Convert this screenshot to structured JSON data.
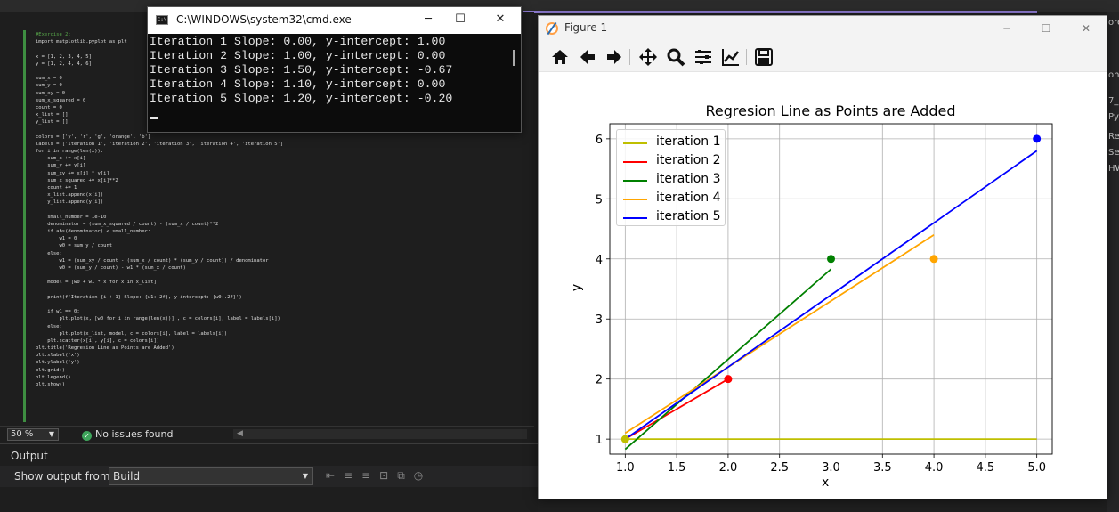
{
  "ide": {
    "code_lines": [
      "#Exercise 2:",
      "import matplotlib.pyplot as plt",
      "",
      "x = [1, 2, 3, 4, 5]",
      "y = [1, 2, 4, 4, 6]",
      "",
      "sum_x = 0",
      "sum_y = 0",
      "sum_xy = 0",
      "sum_x_squared = 0",
      "count = 0",
      "x_list = []",
      "y_list = []",
      "",
      "colors = ['y', 'r', 'g', 'orange', 'b']",
      "labels = ['iteration 1', 'iteration 2', 'iteration 3', 'iteration 4', 'iteration 5']",
      "for i in range(len(x)):",
      "    sum_x += x[i]",
      "    sum_y += y[i]",
      "    sum_xy += x[i] * y[i]",
      "    sum_x_squared += x[i]**2",
      "    count += 1",
      "    x_list.append(x[i])",
      "    y_list.append(y[i])",
      "",
      "    small_number = 1e-10",
      "    denominator = (sum_x_squared / count) - (sum_x / count)**2",
      "    if abs(denominator) < small_number:",
      "        w1 = 0",
      "        w0 = sum_y / count",
      "    else:",
      "        w1 = (sum_xy / count - (sum_x / count) * (sum_y / count)) / denominator",
      "        w0 = (sum_y / count) - w1 * (sum_x / count)",
      "",
      "    model = [w0 + w1 * x for x in x_list]",
      "",
      "    print(f'Iteration {i + 1} Slope: {w1:.2f}, y-intercept: {w0:.2f}')",
      "",
      "    if w1 == 0:",
      "        plt.plot(x, [w0 for i in range(len(x))] , c = colors[i], label = labels[i])",
      "    else:",
      "        plt.plot(x_list, model, c = colors[i], label = labels[i])",
      "    plt.scatter(x[i], y[i], c = colors[i])",
      "plt.title('Regresion Line as Points are Added')",
      "plt.xlabel('x')",
      "plt.ylabel('y')",
      "plt.grid()",
      "plt.legend()",
      "plt.show()"
    ],
    "zoom": "50 %",
    "issues": "No issues found",
    "output_title": "Output",
    "show_output_label": "Show output from:",
    "output_source": "Build",
    "right_fragments": [
      "ore",
      "on '",
      "7_",
      "Py",
      "Re",
      "Sea",
      "HW"
    ]
  },
  "cmd": {
    "title": "C:\\WINDOWS\\system32\\cmd.exe",
    "lines": [
      "Iteration 1 Slope: 0.00, y-intercept: 1.00",
      "Iteration 2 Slope: 1.00, y-intercept: 0.00",
      "Iteration 3 Slope: 1.50, y-intercept: -0.67",
      "Iteration 4 Slope: 1.10, y-intercept: 0.00",
      "Iteration 5 Slope: 1.20, y-intercept: -0.20"
    ]
  },
  "figure": {
    "window_title": "Figure 1",
    "toolbar": [
      "home-icon",
      "back-icon",
      "forward-icon",
      "pan-icon",
      "zoom-icon",
      "configure-subplots-icon",
      "edit-axis-icon",
      "save-icon"
    ]
  },
  "chart_data": {
    "type": "line",
    "title": "Regresion Line as Points are Added",
    "xlabel": "x",
    "ylabel": "y",
    "xlim": [
      0.85,
      5.15
    ],
    "ylim": [
      0.75,
      6.25
    ],
    "xticks": [
      "1.0",
      "1.5",
      "2.0",
      "2.5",
      "3.0",
      "3.5",
      "4.0",
      "4.5",
      "5.0"
    ],
    "yticks": [
      "1",
      "2",
      "3",
      "4",
      "5",
      "6"
    ],
    "grid": true,
    "legend_position": "top-left",
    "series": [
      {
        "name": "iteration 1",
        "color": "#bfbf00",
        "x": [
          1,
          2,
          3,
          4,
          5
        ],
        "y": [
          1,
          1,
          1,
          1,
          1
        ],
        "point": [
          1,
          1
        ]
      },
      {
        "name": "iteration 2",
        "color": "#ff0000",
        "x": [
          1,
          2
        ],
        "y": [
          1,
          2
        ],
        "point": [
          2,
          2
        ]
      },
      {
        "name": "iteration 3",
        "color": "#008000",
        "x": [
          1,
          2,
          3
        ],
        "y": [
          0.83,
          2.33,
          3.83
        ],
        "point": [
          3,
          4
        ]
      },
      {
        "name": "iteration 4",
        "color": "#ffa500",
        "x": [
          1,
          2,
          3,
          4
        ],
        "y": [
          1.1,
          2.2,
          3.3,
          4.4
        ],
        "point": [
          4,
          4
        ]
      },
      {
        "name": "iteration 5",
        "color": "#0000ff",
        "x": [
          1,
          2,
          3,
          4,
          5
        ],
        "y": [
          1.0,
          2.2,
          3.4,
          4.6,
          5.8
        ],
        "point": [
          5,
          6
        ]
      }
    ]
  }
}
